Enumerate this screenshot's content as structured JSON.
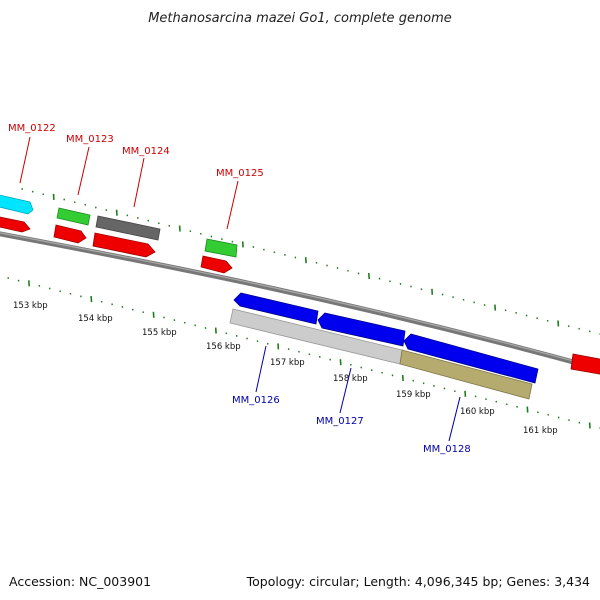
{
  "title": "Methanosarcina mazei Go1, complete genome",
  "accession": "Accession: NC_003901",
  "summary": "Topology: circular; Length: 4,096,345 bp; Genes: 3,434",
  "colors": {
    "forward_label": "#cc0000",
    "reverse_label": "#0000aa",
    "tick": "#1f7f1f",
    "backbone": "#777777",
    "cds_red": "#ee0000",
    "blue_cds": "#0000ee",
    "cyan_cds": "#00e5ff",
    "green_cds": "#33cc33",
    "dark_gray_feature": "#666666",
    "light_gray_feature": "#cccccc",
    "olive_feature": "#b5ab6e"
  },
  "ticks": [
    "153 kbp",
    "154 kbp",
    "155 kbp",
    "156 kbp",
    "157 kbp",
    "158 kbp",
    "159 kbp",
    "160 kbp",
    "161 kbp"
  ],
  "genes_forward": [
    "MM_0122",
    "MM_0123",
    "MM_0124",
    "MM_0125"
  ],
  "genes_reverse": [
    "MM_0126",
    "MM_0127",
    "MM_0128"
  ]
}
